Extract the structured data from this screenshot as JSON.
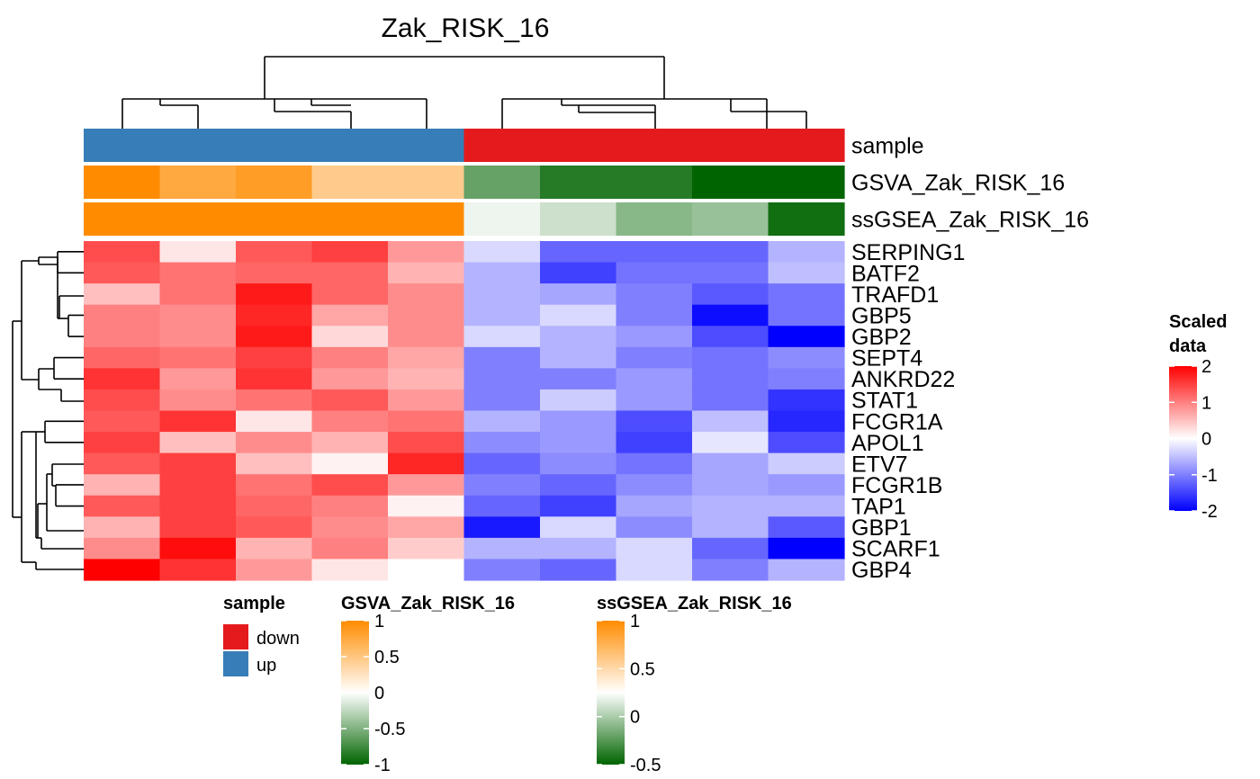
{
  "chart_data": {
    "type": "heatmap",
    "title": "Zak_RISK_16",
    "rows": [
      "SERPING1",
      "BATF2",
      "TRAFD1",
      "GBP5",
      "GBP2",
      "SEPT4",
      "ANKRD22",
      "STAT1",
      "FCGR1A",
      "APOL1",
      "ETV7",
      "FCGR1B",
      "TAP1",
      "GBP1",
      "SCARF1",
      "GBP4"
    ],
    "column_count": 10,
    "values": [
      [
        1.4,
        0.2,
        1.3,
        1.5,
        0.8,
        -0.3,
        -1.2,
        -1.2,
        -1.2,
        -0.6
      ],
      [
        1.3,
        1.1,
        1.2,
        1.2,
        0.6,
        -0.6,
        -1.5,
        -1.1,
        -1.1,
        -0.5
      ],
      [
        0.5,
        1.1,
        1.8,
        1.2,
        0.9,
        -0.6,
        -0.7,
        -1.0,
        -1.3,
        -1.1
      ],
      [
        1.0,
        0.9,
        1.7,
        0.7,
        0.9,
        -0.6,
        -0.3,
        -1.0,
        -1.9,
        -1.1
      ],
      [
        1.0,
        0.9,
        1.8,
        0.3,
        0.9,
        -0.3,
        -0.6,
        -0.8,
        -1.4,
        -2.0
      ],
      [
        1.2,
        1.1,
        1.5,
        1.0,
        0.7,
        -1.0,
        -0.6,
        -1.0,
        -1.1,
        -0.9
      ],
      [
        1.6,
        0.8,
        1.6,
        0.8,
        0.6,
        -1.0,
        -1.0,
        -0.8,
        -1.1,
        -1.0
      ],
      [
        1.4,
        0.9,
        1.1,
        1.3,
        0.8,
        -1.0,
        -0.4,
        -0.8,
        -1.1,
        -1.6
      ],
      [
        1.3,
        1.6,
        0.2,
        1.0,
        1.1,
        -0.6,
        -0.8,
        -1.4,
        -0.5,
        -1.7
      ],
      [
        1.5,
        0.5,
        0.9,
        0.6,
        1.4,
        -0.9,
        -0.8,
        -1.5,
        -0.2,
        -1.4
      ],
      [
        1.3,
        1.5,
        0.5,
        0.1,
        1.7,
        -1.2,
        -0.9,
        -1.1,
        -0.7,
        -0.4
      ],
      [
        0.6,
        1.5,
        1.1,
        1.4,
        0.8,
        -1.0,
        -1.2,
        -0.9,
        -0.7,
        -0.8
      ],
      [
        1.3,
        1.5,
        1.2,
        1.0,
        0.1,
        -1.2,
        -1.5,
        -0.7,
        -0.6,
        -0.6
      ],
      [
        0.6,
        1.5,
        1.3,
        0.9,
        0.7,
        -1.8,
        -0.3,
        -0.9,
        -0.6,
        -1.3
      ],
      [
        0.9,
        1.9,
        0.6,
        1.0,
        0.4,
        -0.6,
        -0.6,
        -0.3,
        -1.2,
        -2.0
      ],
      [
        2.0,
        1.6,
        0.8,
        0.2,
        0.0,
        -1.0,
        -1.2,
        -0.3,
        -1.0,
        -0.6
      ]
    ],
    "color_scale": {
      "title": "Scaled data",
      "min": -2,
      "max": 2,
      "stops": [
        [
          -2,
          "#0000ff"
        ],
        [
          0,
          "#ffffff"
        ],
        [
          2,
          "#ff0000"
        ]
      ],
      "ticks": [
        "2",
        "1",
        "0",
        "-1",
        "-2"
      ]
    },
    "column_annotations": [
      {
        "name": "sample",
        "type": "categorical",
        "values": [
          "up",
          "up",
          "up",
          "up",
          "up",
          "down",
          "down",
          "down",
          "down",
          "down"
        ],
        "categories": [
          "down",
          "up"
        ],
        "colors": {
          "down": "#e41a1c",
          "up": "#377eb8"
        }
      },
      {
        "name": "GSVA_Zak_RISK_16",
        "type": "continuous",
        "values": [
          1.0,
          0.75,
          0.85,
          0.45,
          0.45,
          -0.6,
          -0.85,
          -0.85,
          -1.0,
          -1.0
        ],
        "min": -1,
        "max": 1,
        "stops": [
          [
            -1,
            "#006400"
          ],
          [
            0,
            "#ffffff"
          ],
          [
            1,
            "#ff8c00"
          ]
        ],
        "ticks": [
          "1",
          "0.5",
          "0",
          "-0.5",
          "-1"
        ]
      },
      {
        "name": "ssGSEA_Zak_RISK_16",
        "type": "continuous",
        "values": [
          1.0,
          1.0,
          1.0,
          1.0,
          1.0,
          0.2,
          0.1,
          -0.1,
          -0.05,
          -0.45
        ],
        "min": -0.5,
        "max": 1,
        "stops": [
          [
            -0.5,
            "#006400"
          ],
          [
            0.25,
            "#ffffff"
          ],
          [
            1,
            "#ff8c00"
          ]
        ],
        "ticks": [
          "1",
          "0.5",
          "0",
          "-0.5"
        ]
      }
    ],
    "legend_position": "right and bottom"
  }
}
